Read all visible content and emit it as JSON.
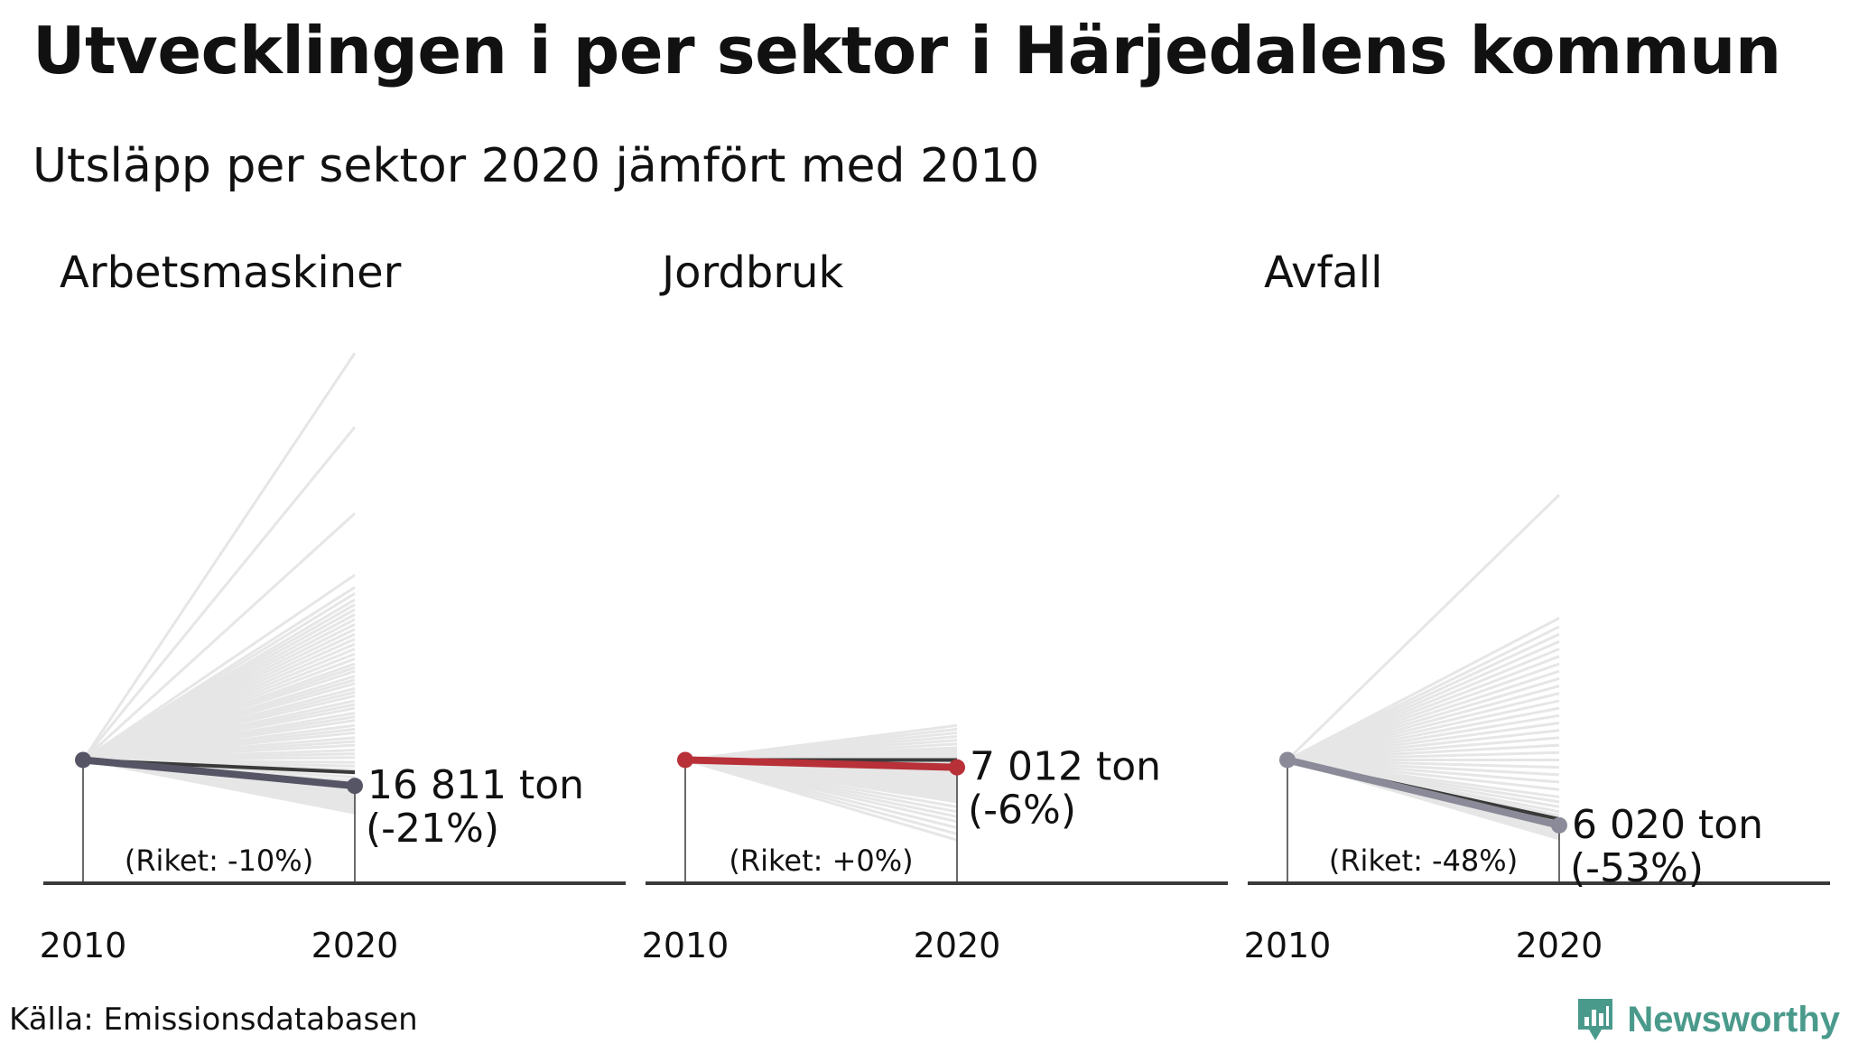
{
  "title": "Utvecklingen i per sektor i Härjedalens kommun",
  "subtitle": "Utsläpp per sektor 2020 jämfört med 2010",
  "source": "Källa: Emissionsdatabasen",
  "brand": "Newsworthy",
  "colors": {
    "background_lines": "#e6e6e6",
    "riket_line": "#3a3a3a",
    "axis": "#3a3a3a",
    "brand": "#4a9a8c"
  },
  "chart_data": [
    {
      "type": "line",
      "title": "Arbetsmaskiner",
      "x": [
        "2010",
        "2020"
      ],
      "highlight_color": "#555566",
      "series": [
        {
          "name": "Härjedalens kommun",
          "values": [
            100,
            79
          ]
        },
        {
          "name": "Riket",
          "values": [
            100,
            90
          ]
        }
      ],
      "other_municipalities_2020_index": [
        430,
        370,
        300,
        250,
        240,
        235,
        230,
        226,
        222,
        218,
        214,
        210,
        206,
        202,
        198,
        194,
        190,
        186,
        182,
        178,
        175,
        172,
        168,
        165,
        162,
        158,
        155,
        152,
        148,
        145,
        142,
        138,
        135,
        132,
        128,
        125,
        122,
        118,
        115,
        112,
        108,
        105,
        102,
        98,
        95,
        92,
        89,
        86,
        83,
        80,
        77,
        75,
        73,
        71,
        69,
        67,
        65,
        63,
        61,
        59,
        57
      ],
      "value_label": "16 811 ton",
      "change_label": "(-21%)",
      "riket_label": "(Riket: -10%)",
      "ylim": [
        0,
        460
      ]
    },
    {
      "type": "line",
      "title": "Jordbruk",
      "x": [
        "2010",
        "2020"
      ],
      "highlight_color": "#b83038",
      "series": [
        {
          "name": "Härjedalens kommun",
          "values": [
            100,
            94
          ]
        },
        {
          "name": "Riket",
          "values": [
            100,
            100
          ]
        }
      ],
      "other_municipalities_2020_index": [
        128,
        125,
        122,
        119,
        116,
        113,
        110,
        108,
        106,
        104,
        102,
        101,
        100,
        99,
        98,
        97,
        96,
        95,
        94,
        93,
        92,
        91,
        90,
        89,
        88,
        87,
        86,
        85,
        84,
        83,
        82,
        81,
        80,
        78,
        76,
        74,
        72,
        70,
        68,
        66,
        62,
        58,
        54,
        50,
        45,
        40,
        35
      ],
      "value_label": "7 012 ton",
      "change_label": "(-6%)",
      "riket_label": "(Riket: +0%)",
      "ylim": [
        0,
        460
      ]
    },
    {
      "type": "line",
      "title": "Avfall",
      "x": [
        "2010",
        "2020"
      ],
      "highlight_color": "#8a8a99",
      "series": [
        {
          "name": "Härjedalens kommun",
          "values": [
            100,
            47
          ]
        },
        {
          "name": "Riket",
          "values": [
            100,
            52
          ]
        }
      ],
      "other_municipalities_2020_index": [
        315,
        215,
        208,
        202,
        196,
        190,
        184,
        178,
        172,
        166,
        160,
        154,
        148,
        142,
        136,
        130,
        124,
        118,
        112,
        106,
        100,
        94,
        88,
        82,
        76,
        70,
        66,
        62,
        58,
        55,
        52,
        50,
        48,
        46,
        44,
        42,
        40,
        38,
        36
      ],
      "value_label": "6 020 ton",
      "change_label": "(-53%)",
      "riket_label": "(Riket: -48%)",
      "ylim": [
        0,
        460
      ]
    }
  ]
}
